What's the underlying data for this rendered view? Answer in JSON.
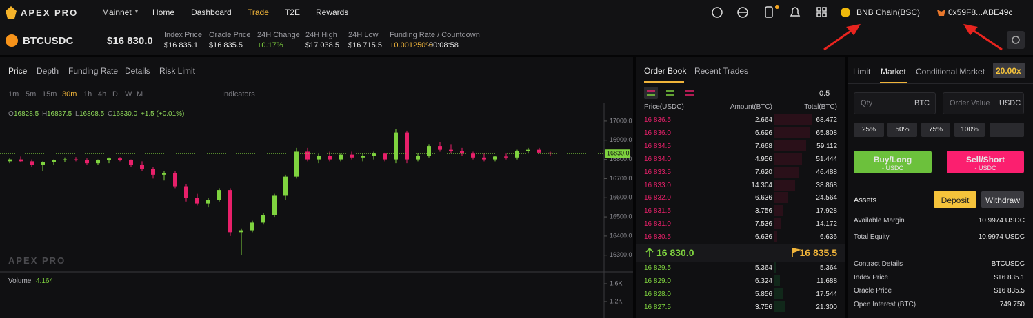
{
  "nav": {
    "logo": "APEX PRO",
    "network": "Mainnet",
    "links": [
      "Home",
      "Dashboard",
      "Trade",
      "T2E",
      "Rewards"
    ],
    "chain": "BNB Chain(BSC)",
    "wallet": "0x59F8...ABE49c"
  },
  "ticker": {
    "symbol": "BTCUSDC",
    "price": "$16 830.0",
    "stats": [
      {
        "label": "Index Price",
        "value": "$16 835.1"
      },
      {
        "label": "Oracle Price",
        "value": "$16 835.5"
      },
      {
        "label": "24H Change",
        "value": "+0.17%"
      },
      {
        "label": "24H High",
        "value": "$17 038.5"
      },
      {
        "label": "24H Low",
        "value": "$16 715.5"
      },
      {
        "label": "Funding Rate / Countdown",
        "value": "+0.001250%",
        "extra": "00:08:58"
      }
    ]
  },
  "chart": {
    "tabs": [
      "Price",
      "Depth",
      "Funding Rate",
      "Details",
      "Risk Limit"
    ],
    "intervals": [
      "1m",
      "5m",
      "15m",
      "30m",
      "1h",
      "4h",
      "D",
      "W",
      "M"
    ],
    "indicators": "Indicators",
    "ohlc": [
      {
        "k": "O",
        "v": "16828.5"
      },
      {
        "k": "H",
        "v": "16837.5"
      },
      {
        "k": "L",
        "v": "16808.5"
      },
      {
        "k": "C",
        "v": "16830.0"
      }
    ],
    "change": "+1.5 (+0.01%)",
    "watermark": "APEX PRO",
    "volume_label": "Volume",
    "volume_value": "4.164"
  },
  "chart_data": {
    "type": "candlestick",
    "up_color": "#7fd33f",
    "down_color": "#e8206a",
    "values": [
      [
        16790,
        16805,
        16780,
        16800
      ],
      [
        16800,
        16815,
        16785,
        16790
      ],
      [
        16790,
        16800,
        16760,
        16770
      ],
      [
        16770,
        16790,
        16740,
        16785
      ],
      [
        16785,
        16800,
        16770,
        16795
      ],
      [
        16795,
        16810,
        16785,
        16800
      ],
      [
        16800,
        16812,
        16790,
        16795
      ],
      [
        16795,
        16805,
        16770,
        16780
      ],
      [
        16780,
        16800,
        16770,
        16795
      ],
      [
        16795,
        16810,
        16780,
        16805
      ],
      [
        16805,
        16812,
        16790,
        16795
      ],
      [
        16795,
        16800,
        16760,
        16770
      ],
      [
        16770,
        16790,
        16740,
        16750
      ],
      [
        16750,
        16760,
        16700,
        16720
      ],
      [
        16720,
        16740,
        16690,
        16730
      ],
      [
        16730,
        16740,
        16650,
        16660
      ],
      [
        16660,
        16670,
        16580,
        16600
      ],
      [
        16600,
        16620,
        16560,
        16570
      ],
      [
        16570,
        16600,
        16550,
        16590
      ],
      [
        16590,
        16650,
        16580,
        16640
      ],
      [
        16640,
        16650,
        16400,
        16420
      ],
      [
        16420,
        16440,
        16300,
        16430
      ],
      [
        16430,
        16480,
        16420,
        16470
      ],
      [
        16470,
        16520,
        16460,
        16510
      ],
      [
        16510,
        16620,
        16500,
        16610
      ],
      [
        16610,
        16720,
        16590,
        16710
      ],
      [
        16710,
        16860,
        16700,
        16840
      ],
      [
        16840,
        16860,
        16790,
        16800
      ],
      [
        16800,
        16830,
        16780,
        16820
      ],
      [
        16820,
        16840,
        16790,
        16800
      ],
      [
        16800,
        16830,
        16790,
        16825
      ],
      [
        16825,
        16840,
        16800,
        16810
      ],
      [
        16810,
        16830,
        16790,
        16820
      ],
      [
        16820,
        16840,
        16800,
        16830
      ],
      [
        16830,
        16835,
        16790,
        16800
      ],
      [
        16800,
        16960,
        16780,
        16940
      ],
      [
        16940,
        16950,
        16780,
        16800
      ],
      [
        16800,
        16830,
        16790,
        16820
      ],
      [
        16820,
        16880,
        16810,
        16870
      ],
      [
        16870,
        16890,
        16840,
        16850
      ],
      [
        16850,
        16880,
        16830,
        16845
      ],
      [
        16845,
        16860,
        16820,
        16830
      ],
      [
        16830,
        16840,
        16800,
        16810
      ],
      [
        16810,
        16830,
        16790,
        16800
      ],
      [
        16800,
        16820,
        16790,
        16815
      ],
      [
        16815,
        16830,
        16800,
        16810
      ],
      [
        16810,
        16850,
        16800,
        16845
      ],
      [
        16845,
        16860,
        16830,
        16850
      ],
      [
        16850,
        16860,
        16830,
        16835
      ],
      [
        16835,
        16840,
        16820,
        16830
      ]
    ],
    "ylim": [
      16220,
      17050
    ],
    "yticks": [
      {
        "value": 17000,
        "label": "17000.0"
      },
      {
        "value": 16900,
        "label": "16900.0"
      },
      {
        "value": 16800,
        "label": "16800.0"
      },
      {
        "value": 16700,
        "label": "16700.0"
      },
      {
        "value": 16600,
        "label": "16600.0"
      },
      {
        "value": 16500,
        "label": "16500.0"
      },
      {
        "value": 16400,
        "label": "16400.0"
      },
      {
        "value": 16300,
        "label": "16300.0"
      }
    ],
    "current": {
      "value": 16830,
      "label": "16830.0"
    },
    "y2lim": [
      831,
      1754
    ],
    "y2ticks": [
      {
        "value": 1600,
        "label": "1.6K"
      },
      {
        "value": 1200,
        "label": "1.2K"
      }
    ]
  },
  "orderbook": {
    "tabs": [
      "Order Book",
      "Recent Trades"
    ],
    "size": "0.5",
    "headers": [
      "Price(USDC)",
      "Amount(BTC)",
      "Total(BTC)"
    ],
    "asks": [
      [
        "16 836.5",
        "2.664",
        "68.472"
      ],
      [
        "16 836.0",
        "6.696",
        "65.808"
      ],
      [
        "16 834.5",
        "7.668",
        "59.112"
      ],
      [
        "16 834.0",
        "4.956",
        "51.444"
      ],
      [
        "16 833.5",
        "7.620",
        "46.488"
      ],
      [
        "16 833.0",
        "14.304",
        "38.868"
      ],
      [
        "16 832.0",
        "6.636",
        "24.564"
      ],
      [
        "16 831.5",
        "3.756",
        "17.928"
      ],
      [
        "16 831.0",
        "7.536",
        "14.172"
      ],
      [
        "16 830.5",
        "6.636",
        "6.636"
      ]
    ],
    "last": "16 830.0",
    "mark": "16 835.5",
    "bids": [
      [
        "16 829.5",
        "5.364",
        "5.364"
      ],
      [
        "16 829.0",
        "6.324",
        "11.688"
      ],
      [
        "16 828.0",
        "5.856",
        "17.544"
      ],
      [
        "16 827.5",
        "3.756",
        "21.300"
      ]
    ]
  },
  "trade": {
    "tabs": [
      "Limit",
      "Market",
      "Conditional Market"
    ],
    "leverage": "20.00x",
    "qty": {
      "label": "Qty",
      "unit": "BTC"
    },
    "order_value": {
      "label": "Order Value",
      "unit": "USDC"
    },
    "percents": [
      "25%",
      "50%",
      "75%",
      "100%"
    ],
    "buy": {
      "label": "Buy/Long",
      "sub": "- USDC"
    },
    "sell": {
      "label": "Sell/Short",
      "sub": "- USDC"
    },
    "assets": "Assets",
    "deposit": "Deposit",
    "withdraw": "Withdraw",
    "balances": [
      [
        "Available Margin",
        "10.9974 USDC"
      ],
      [
        "Total Equity",
        "10.9974 USDC"
      ]
    ],
    "details": [
      [
        "Contract Details",
        "BTCUSDC"
      ],
      [
        "Index Price",
        "$16 835.1"
      ],
      [
        "Oracle Price",
        "$16 835.5"
      ],
      [
        "Open Interest (BTC)",
        "749.750"
      ]
    ]
  }
}
